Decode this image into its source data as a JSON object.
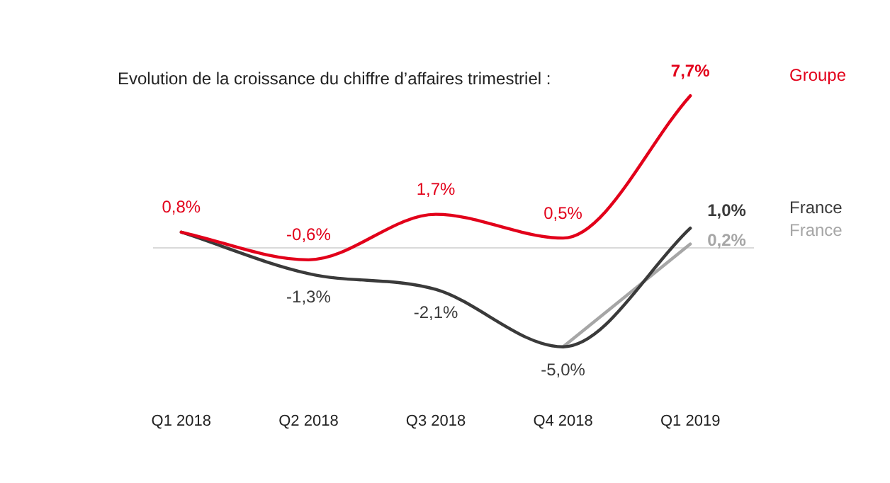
{
  "chart_data": {
    "type": "line",
    "title": "Evolution de la croissance du chiffre d’affaires trimestriel :",
    "categories": [
      "Q1 2018",
      "Q2 2018",
      "Q3 2018",
      "Q4 2018",
      "Q1 2019"
    ],
    "series": [
      {
        "name": "Groupe",
        "color": "#e2001a",
        "values": [
          0.8,
          -0.6,
          1.7,
          0.5,
          7.7
        ],
        "value_labels": [
          "0,8%",
          "-0,6%",
          "1,7%",
          "0,5%",
          "7,7%"
        ]
      },
      {
        "name": "France",
        "color": "#3a3a3a",
        "values": [
          0.8,
          -1.3,
          -2.1,
          -5.0,
          1.0
        ],
        "value_labels": [
          null,
          "-1,3%",
          "-2,1%",
          "-5,0%",
          "1,0%"
        ]
      },
      {
        "name": "France",
        "color": "#a6a6a6",
        "values": [
          null,
          null,
          null,
          -5.0,
          0.2
        ],
        "value_labels": [
          null,
          null,
          null,
          null,
          "0,2%"
        ]
      }
    ],
    "tick_labels": "x",
    "grid": false,
    "legend": false,
    "marker": "none",
    "line_style": "solid",
    "ref_lines": [
      {
        "axis": "y",
        "value": 0,
        "color": "#d9d9d9"
      }
    ]
  }
}
